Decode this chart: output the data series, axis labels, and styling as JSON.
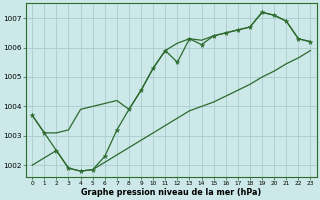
{
  "xlabel": "Graphe pression niveau de la mer (hPa)",
  "bg_color": "#cce8e8",
  "grid_color": "#aacccc",
  "line_color": "#2d6a2d",
  "x_values": [
    0,
    1,
    2,
    3,
    4,
    5,
    6,
    7,
    8,
    9,
    10,
    11,
    12,
    13,
    14,
    15,
    16,
    17,
    18,
    19,
    20,
    21,
    22,
    23
  ],
  "y_main": [
    1003.7,
    1003.1,
    1002.5,
    1001.9,
    1001.8,
    1001.85,
    1002.3,
    1003.2,
    1003.9,
    1004.55,
    1005.3,
    1005.9,
    1005.5,
    1006.3,
    1006.1,
    1006.4,
    1006.5,
    1006.6,
    1006.7,
    1007.2,
    1007.1,
    1006.9,
    1006.3,
    1006.2
  ],
  "y_upper": [
    1003.7,
    1003.1,
    1003.1,
    1003.2,
    1003.9,
    1004.0,
    1004.1,
    1004.2,
    1003.9,
    1004.55,
    1005.3,
    1005.9,
    1006.15,
    1006.3,
    1006.25,
    1006.4,
    1006.5,
    1006.6,
    1006.7,
    1007.2,
    1007.1,
    1006.9,
    1006.3,
    1006.2
  ],
  "y_lower": [
    1002.0,
    1002.25,
    1002.5,
    1001.9,
    1001.8,
    1001.85,
    1002.1,
    1002.35,
    1002.6,
    1002.85,
    1003.1,
    1003.35,
    1003.6,
    1003.85,
    1004.0,
    1004.15,
    1004.35,
    1004.55,
    1004.75,
    1005.0,
    1005.2,
    1005.45,
    1005.65,
    1005.9
  ],
  "ylim": [
    1001.6,
    1007.5
  ],
  "yticks": [
    1002,
    1003,
    1004,
    1005,
    1006,
    1007
  ],
  "xlim": [
    -0.5,
    23.5
  ]
}
